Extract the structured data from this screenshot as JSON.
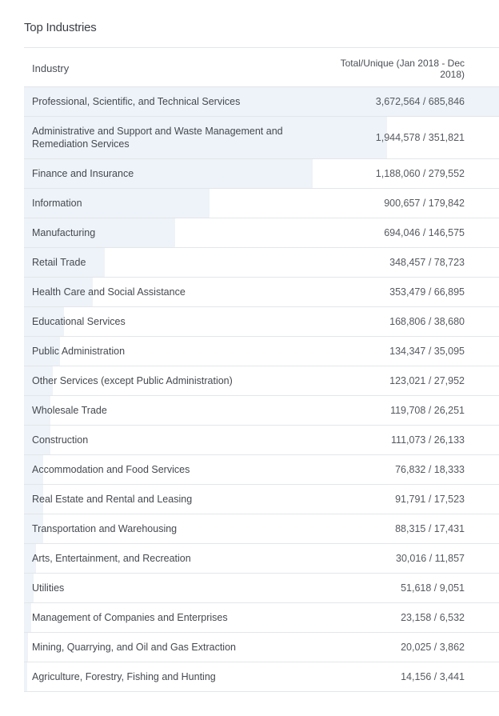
{
  "title": "Top Industries",
  "table": {
    "header_industry": "Industry",
    "header_total": "Total/Unique (Jan 2018 - Dec 2018)",
    "rows": [
      {
        "industry": "Professional, Scientific, and Technical Services",
        "value": "3,672,564 / 685,846",
        "share": 1.0
      },
      {
        "industry": "Administrative and Support and Waste Management and Remediation Services",
        "value": "1,944,578 / 351,821",
        "share": 0.765
      },
      {
        "industry": "Finance and Insurance",
        "value": "1,188,060 / 279,552",
        "share": 0.608
      },
      {
        "industry": "Information",
        "value": "900,657 / 179,842",
        "share": 0.39
      },
      {
        "industry": "Manufacturing",
        "value": "694,046 / 146,575",
        "share": 0.318
      },
      {
        "industry": "Retail Trade",
        "value": "348,457 / 78,723",
        "share": 0.17
      },
      {
        "industry": "Health Care and Social Assistance",
        "value": "353,479 / 66,895",
        "share": 0.145
      },
      {
        "industry": "Educational Services",
        "value": "168,806 / 38,680",
        "share": 0.085
      },
      {
        "industry": "Public Administration",
        "value": "134,347 / 35,095",
        "share": 0.075
      },
      {
        "industry": "Other Services (except Public Administration)",
        "value": "123,021 / 27,952",
        "share": 0.06
      },
      {
        "industry": "Wholesale Trade",
        "value": "119,708 / 26,251",
        "share": 0.055
      },
      {
        "industry": "Construction",
        "value": "111,073 / 26,133",
        "share": 0.055
      },
      {
        "industry": "Accommodation and Food Services",
        "value": "76,832 / 18,333",
        "share": 0.04
      },
      {
        "industry": "Real Estate and Rental and Leasing",
        "value": "91,791 / 17,523",
        "share": 0.04
      },
      {
        "industry": "Transportation and Warehousing",
        "value": "88,315 / 17,431",
        "share": 0.04
      },
      {
        "industry": "Arts, Entertainment, and Recreation",
        "value": "30,016 / 11,857",
        "share": 0.025
      },
      {
        "industry": "Utilities",
        "value": "51,618 / 9,051",
        "share": 0.02
      },
      {
        "industry": "Management of Companies and Enterprises",
        "value": "23,158 / 6,532",
        "share": 0.015
      },
      {
        "industry": "Mining, Quarrying, and Oil and Gas Extraction",
        "value": "20,025 / 3,862",
        "share": 0.008
      },
      {
        "industry": "Agriculture, Forestry, Fishing and Hunting",
        "value": "14,156 / 3,441",
        "share": 0.007
      }
    ]
  }
}
